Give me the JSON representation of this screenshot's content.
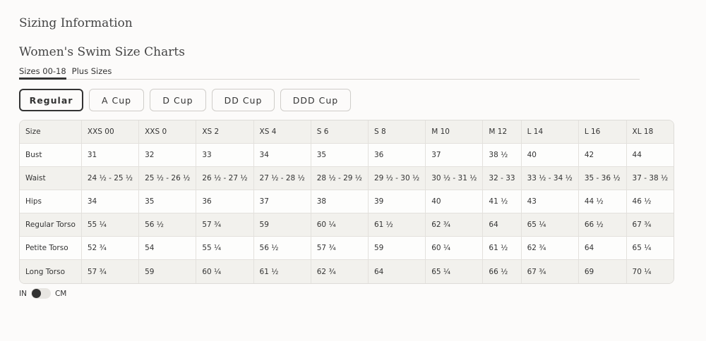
{
  "title": "Sizing Information",
  "subtitle": "Women's Swim Size Charts",
  "tabs": [
    {
      "label": "Sizes 00-18",
      "active": true
    },
    {
      "label": "Plus Sizes",
      "active": false
    }
  ],
  "cups": [
    {
      "label": "Regular",
      "active": true
    },
    {
      "label": "A Cup"
    },
    {
      "label": "D Cup"
    },
    {
      "label": "DD Cup"
    },
    {
      "label": "DDD Cup"
    }
  ],
  "table": {
    "header": [
      "Size",
      "XXS 00",
      "XXS 0",
      "XS 2",
      "XS 4",
      "S 6",
      "S 8",
      "M 10",
      "M 12",
      "L 14",
      "L 16",
      "XL 18"
    ],
    "rows": [
      [
        "Bust",
        "31",
        "32",
        "33",
        "34",
        "35",
        "36",
        "37",
        "38 ½",
        "40",
        "42",
        "44"
      ],
      [
        "Waist",
        "24 ½ - 25 ½",
        "25 ½ - 26 ½",
        "26 ½ - 27 ½",
        "27 ½ - 28 ½",
        "28 ½ - 29 ½",
        "29 ½ - 30 ½",
        "30 ½ - 31 ½",
        "32 - 33",
        "33 ½ - 34 ½",
        "35 - 36 ½",
        "37 - 38 ½"
      ],
      [
        "Hips",
        "34",
        "35",
        "36",
        "37",
        "38",
        "39",
        "40",
        "41 ½",
        "43",
        "44 ½",
        "46 ½"
      ],
      [
        "Regular Torso",
        "55 ¼",
        "56 ½",
        "57 ¾",
        "59",
        "60 ¼",
        "61 ½",
        "62 ¾",
        "64",
        "65 ¼",
        "66 ½",
        "67 ¾"
      ],
      [
        "Petite Torso",
        "52 ¾",
        "54",
        "55 ¼",
        "56 ½",
        "57 ¾",
        "59",
        "60 ¼",
        "61 ½",
        "62 ¾",
        "64",
        "65 ¼"
      ],
      [
        "Long Torso",
        "57 ¾",
        "59",
        "60 ¼",
        "61 ½",
        "62 ¾",
        "64",
        "65 ¼",
        "66 ½",
        "67 ¾",
        "69",
        "70 ¼"
      ]
    ]
  },
  "units": {
    "left": "IN",
    "right": "CM",
    "selected": "IN"
  }
}
